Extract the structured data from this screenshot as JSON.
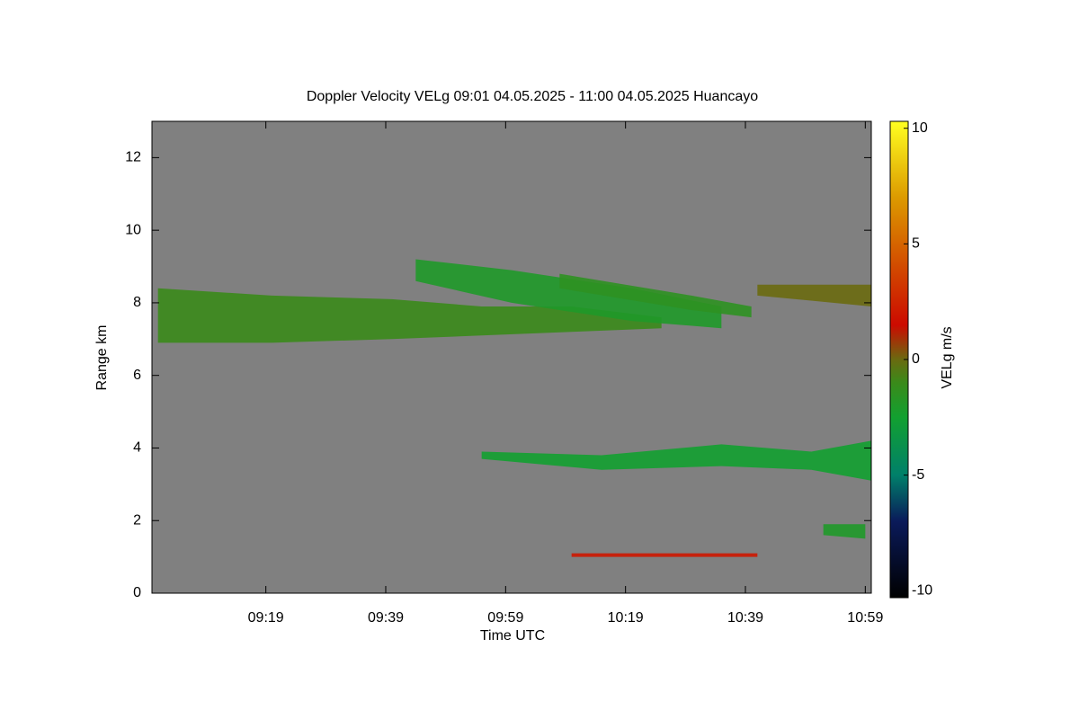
{
  "chart_data": {
    "type": "time-height",
    "title": "Doppler Velocity VELg   09:01 04.05.2025 - 11:00 04.05.2025 Huancayo",
    "xlabel": "Time UTC",
    "ylabel": "Range km",
    "background": "#808080",
    "xlim": [
      540,
      660
    ],
    "xticks": [
      {
        "value": 559,
        "label": "09:19"
      },
      {
        "value": 579,
        "label": "09:39"
      },
      {
        "value": 599,
        "label": "09:59"
      },
      {
        "value": 619,
        "label": "10:19"
      },
      {
        "value": 639,
        "label": "10:39"
      },
      {
        "value": 659,
        "label": "10:59"
      }
    ],
    "ylim": [
      0,
      13
    ],
    "yticks": [
      0,
      2,
      4,
      6,
      8,
      10,
      12
    ],
    "colorbar": {
      "label": "VELg m/s",
      "clim": [
        -10.3,
        10.3
      ],
      "ticks": [
        -10,
        -5,
        0,
        5,
        10
      ],
      "colormap": [
        [
          -10.3,
          "#000000"
        ],
        [
          -7,
          "#0a1a5a"
        ],
        [
          -5,
          "#00806a"
        ],
        [
          -2.5,
          "#12a030"
        ],
        [
          -1,
          "#3a8a1a"
        ],
        [
          0,
          "#6a6a10"
        ],
        [
          1.5,
          "#cc0a00"
        ],
        [
          4,
          "#d24a00"
        ],
        [
          7,
          "#dc9a00"
        ],
        [
          10.3,
          "#ffff20"
        ]
      ]
    },
    "echoes": [
      {
        "x": [
          541,
          560,
          580,
          595,
          610,
          625
        ],
        "top": [
          8.4,
          8.2,
          8.1,
          7.9,
          7.9,
          7.6
        ],
        "bottom": [
          6.9,
          6.9,
          7.0,
          7.1,
          7.2,
          7.3
        ],
        "value": -1
      },
      {
        "x": [
          584,
          600,
          620,
          635
        ],
        "top": [
          9.2,
          8.9,
          8.4,
          7.9
        ],
        "bottom": [
          8.6,
          8.0,
          7.5,
          7.3
        ],
        "value": -2
      },
      {
        "x": [
          608,
          630,
          640
        ],
        "top": [
          8.8,
          8.2,
          7.9
        ],
        "bottom": [
          8.4,
          7.8,
          7.6
        ],
        "value": -1.5
      },
      {
        "x": [
          641,
          660
        ],
        "top": [
          8.5,
          8.5
        ],
        "bottom": [
          8.2,
          7.9
        ],
        "value": 0
      },
      {
        "x": [
          595,
          615,
          635,
          650,
          660
        ],
        "top": [
          3.9,
          3.8,
          4.1,
          3.9,
          4.2
        ],
        "bottom": [
          3.7,
          3.4,
          3.5,
          3.4,
          3.1
        ],
        "value": -2.5
      },
      {
        "x": [
          610,
          641
        ],
        "top": [
          1.1,
          1.1
        ],
        "bottom": [
          1.0,
          1.0
        ],
        "value": 2
      },
      {
        "x": [
          652,
          659
        ],
        "top": [
          1.9,
          1.9
        ],
        "bottom": [
          1.6,
          1.5
        ],
        "value": -2
      }
    ]
  }
}
